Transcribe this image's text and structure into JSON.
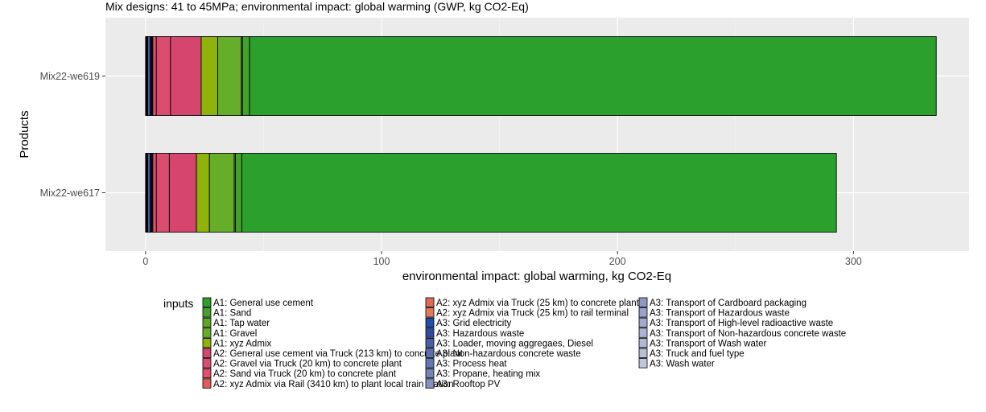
{
  "chart_data": {
    "type": "bar",
    "orientation": "horizontal",
    "stacked": true,
    "title": "Mix designs: 41 to 45MPa; environmental impact: global warming (GWP, kg CO2-Eq)",
    "xlabel": "environmental impact: global warming, kg CO2-Eq",
    "ylabel": "Products",
    "xlim": [
      -17,
      349
    ],
    "xticks": [
      0,
      100,
      200,
      300
    ],
    "grid": true,
    "legend_title": "inputs",
    "legend_position": "bottom",
    "categories": [
      "Mix22-we619",
      "Mix22-we617"
    ],
    "series": [
      {
        "name": "A1: General use cement",
        "color": "#2ca02c",
        "values": [
          291,
          252
        ]
      },
      {
        "name": "A1: Sand",
        "color": "#43a02a",
        "values": [
          3.0,
          2.7
        ]
      },
      {
        "name": "A1: Tap water",
        "color": "#5ba828",
        "values": [
          0.5,
          0.5
        ]
      },
      {
        "name": "A1: Gravel",
        "color": "#66ad29",
        "values": [
          10.0,
          10.5
        ]
      },
      {
        "name": "A1: xyz Admix",
        "color": "#8fb30a",
        "values": [
          7.0,
          5.5
        ]
      },
      {
        "name": "A2: General use cement via Truck (213 km) to concrete plant",
        "color": "#d6456e",
        "values": [
          13.0,
          11.5
        ]
      },
      {
        "name": "A2: Gravel via Truck (20 km) to concrete plant",
        "color": "#da4d6e",
        "values": [
          6.0,
          5.5
        ]
      },
      {
        "name": "A2: Sand via Truck (20 km) to concrete plant",
        "color": "#e0506a",
        "values": [
          1.5,
          1.5
        ]
      },
      {
        "name": "A2: xyz Admix via Rail (3410 km) to plant local train station",
        "color": "#e35b5b",
        "values": [
          0.3,
          0.3
        ]
      },
      {
        "name": "A2: xyz Admix via Truck (25 km) to concrete plant",
        "color": "#e06a58",
        "values": [
          0.2,
          0.2
        ]
      },
      {
        "name": "A2: xyz Admix via Truck (25 km) to rail terminal",
        "color": "#e07a5a",
        "values": [
          0.1,
          0.1
        ]
      },
      {
        "name": "A3: Grid electricity",
        "color": "#1f4fa8",
        "values": [
          0.5,
          0.5
        ]
      },
      {
        "name": "A3: Hazardous waste",
        "color": "#33499b",
        "values": [
          0.05,
          0.05
        ]
      },
      {
        "name": "A3: Loader, moving aggregaes, Diesel",
        "color": "#4a5ea6",
        "values": [
          1.0,
          1.0
        ]
      },
      {
        "name": "A3: Non-hazardous concrete waste",
        "color": "#5b6fae",
        "values": [
          0.1,
          0.1
        ]
      },
      {
        "name": "A3: Process heat",
        "color": "#6377b0",
        "values": [
          0.2,
          0.2
        ]
      },
      {
        "name": "A3: Propane, heating mix",
        "color": "#7384b7",
        "values": [
          0.1,
          0.1
        ]
      },
      {
        "name": "A3: Rooftop PV",
        "color": "#8392bf",
        "values": [
          0.05,
          0.05
        ]
      },
      {
        "name": "A3: Transport of Cardboard packaging",
        "color": "#8d9bc4",
        "values": [
          0.02,
          0.02
        ]
      },
      {
        "name": "A3: Transport of Hazardous waste",
        "color": "#97a3c8",
        "values": [
          0.02,
          0.02
        ]
      },
      {
        "name": "A3: Transport of High-level radioactive waste",
        "color": "#a1abcc",
        "values": [
          0.02,
          0.02
        ]
      },
      {
        "name": "A3: Transport of Non-hazardous concrete waste",
        "color": "#aab3d0",
        "values": [
          0.05,
          0.05
        ]
      },
      {
        "name": "A3: Transport of Wash water",
        "color": "#b2bad3",
        "values": [
          0.02,
          0.02
        ]
      },
      {
        "name": "A3: Truck and fuel type",
        "color": "#b9c0d6",
        "values": [
          0.3,
          0.3
        ]
      },
      {
        "name": "A3: Wash water",
        "color": "#c1c7da",
        "values": [
          0.05,
          0.05
        ]
      }
    ]
  }
}
